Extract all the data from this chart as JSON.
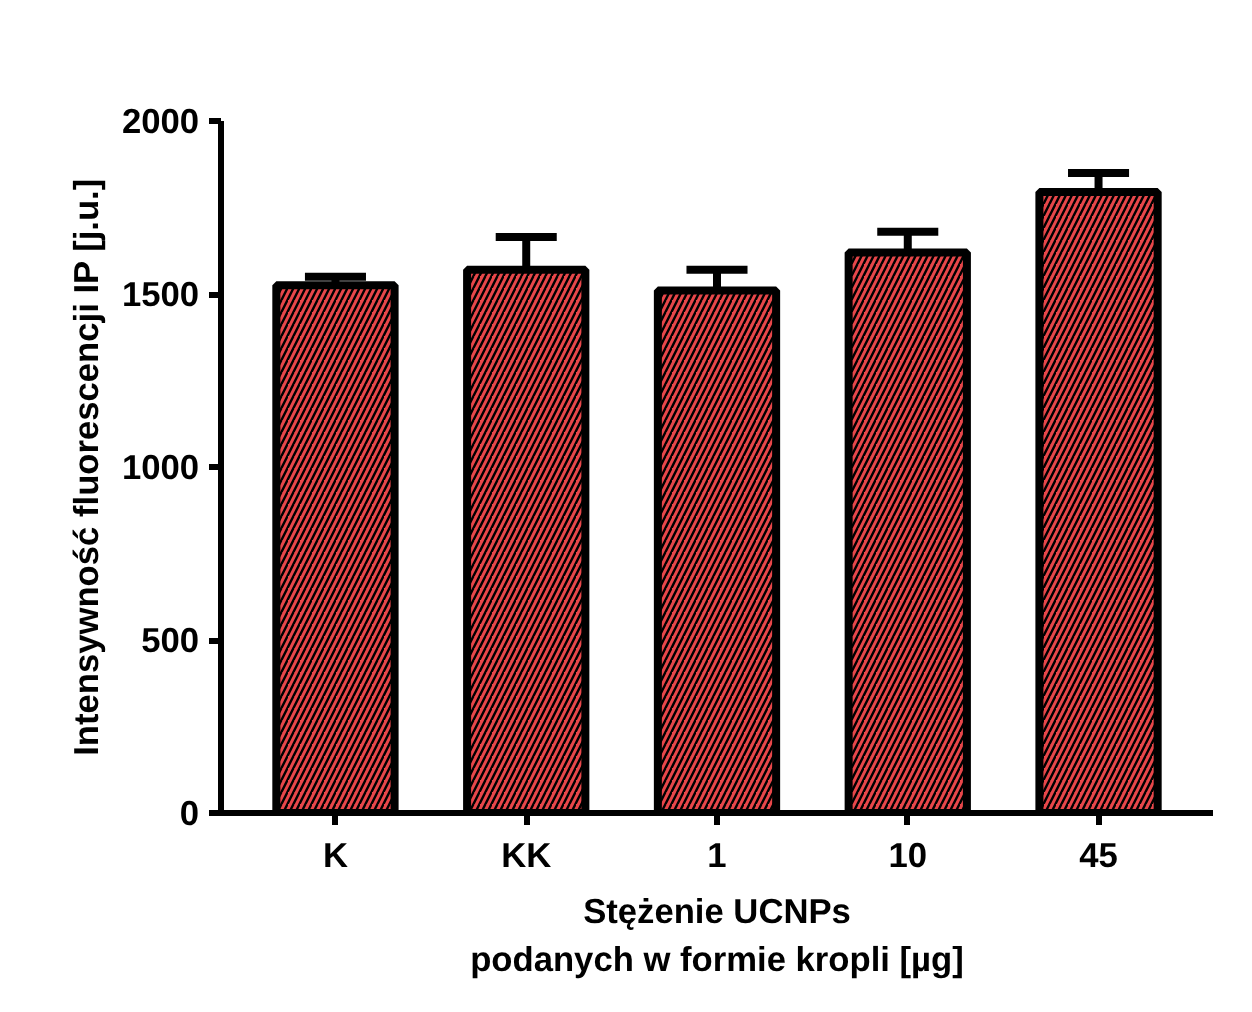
{
  "chart_data": {
    "type": "bar",
    "categories": [
      "K",
      "KK",
      "1",
      "10",
      "45"
    ],
    "values": [
      1525,
      1570,
      1510,
      1620,
      1795
    ],
    "errors": [
      [
        1525,
        1550
      ],
      [
        1570,
        1665
      ],
      [
        1510,
        1570
      ],
      [
        1620,
        1680
      ],
      [
        1795,
        1850
      ]
    ],
    "color": "#e8474a",
    "ylim": [
      0,
      2000
    ],
    "yticks": [
      0,
      500,
      1000,
      1500,
      2000
    ],
    "xlabel": "Stężenie UCNPs\npodanych w formie kropli [µg]",
    "ylabel": "Intensywność fluorescencji IP [j.u.]",
    "grid": false
  }
}
